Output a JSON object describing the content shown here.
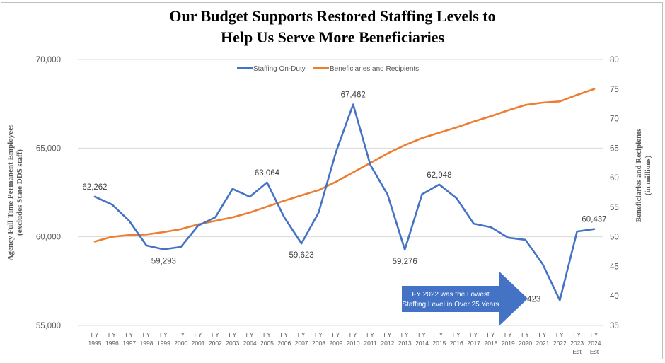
{
  "chart_data": {
    "type": "line",
    "title_line1": "Our Budget Supports Restored Staffing Levels to",
    "title_line2": "Help Us Serve More Beneficiaries",
    "categories": [
      {
        "line1": "FY",
        "line2": "1995",
        "line3": ""
      },
      {
        "line1": "FY",
        "line2": "1996",
        "line3": ""
      },
      {
        "line1": "FY",
        "line2": "1997",
        "line3": ""
      },
      {
        "line1": "FY",
        "line2": "1998",
        "line3": ""
      },
      {
        "line1": "FY",
        "line2": "1999",
        "line3": ""
      },
      {
        "line1": "FY",
        "line2": "2000",
        "line3": ""
      },
      {
        "line1": "FY",
        "line2": "2001",
        "line3": ""
      },
      {
        "line1": "FY",
        "line2": "2002",
        "line3": ""
      },
      {
        "line1": "FY",
        "line2": "2003",
        "line3": ""
      },
      {
        "line1": "FY",
        "line2": "2004",
        "line3": ""
      },
      {
        "line1": "FY",
        "line2": "2005",
        "line3": ""
      },
      {
        "line1": "FY",
        "line2": "2006",
        "line3": ""
      },
      {
        "line1": "FY",
        "line2": "2007",
        "line3": ""
      },
      {
        "line1": "FY",
        "line2": "2008",
        "line3": ""
      },
      {
        "line1": "FY",
        "line2": "2009",
        "line3": ""
      },
      {
        "line1": "FY",
        "line2": "2010",
        "line3": ""
      },
      {
        "line1": "FY",
        "line2": "2011",
        "line3": ""
      },
      {
        "line1": "FY",
        "line2": "2012",
        "line3": ""
      },
      {
        "line1": "FY",
        "line2": "2013",
        "line3": ""
      },
      {
        "line1": "FY",
        "line2": "2014",
        "line3": ""
      },
      {
        "line1": "FY",
        "line2": "2015",
        "line3": ""
      },
      {
        "line1": "FY",
        "line2": "2016",
        "line3": ""
      },
      {
        "line1": "FY",
        "line2": "2017",
        "line3": ""
      },
      {
        "line1": "FY",
        "line2": "2018",
        "line3": ""
      },
      {
        "line1": "FY",
        "line2": "2019",
        "line3": ""
      },
      {
        "line1": "FY",
        "line2": "2020",
        "line3": ""
      },
      {
        "line1": "FY",
        "line2": "2021",
        "line3": ""
      },
      {
        "line1": "FY",
        "line2": "2022",
        "line3": ""
      },
      {
        "line1": "FY",
        "line2": "2023",
        "line3": "Est"
      },
      {
        "line1": "FY",
        "line2": "2024",
        "line3": "Est"
      }
    ],
    "series": [
      {
        "name": "Staffing On-Duty",
        "axis": "left",
        "color": "#4472c4",
        "values": [
          62262,
          61820,
          60900,
          59510,
          59293,
          59430,
          60630,
          61100,
          62700,
          62260,
          63064,
          61100,
          59623,
          61380,
          64770,
          67462,
          64050,
          62380,
          59276,
          62400,
          62948,
          62180,
          60740,
          60540,
          59950,
          59830,
          58470,
          56423,
          60300,
          60437
        ],
        "data_labels": [
          {
            "index": 0,
            "text": "62,262",
            "position": "above"
          },
          {
            "index": 4,
            "text": "59,293",
            "position": "below"
          },
          {
            "index": 10,
            "text": "63,064",
            "position": "above"
          },
          {
            "index": 12,
            "text": "59,623",
            "position": "below"
          },
          {
            "index": 15,
            "text": "67,462",
            "position": "above"
          },
          {
            "index": 18,
            "text": "59,276",
            "position": "below"
          },
          {
            "index": 20,
            "text": "62,948",
            "position": "above"
          },
          {
            "index": 27,
            "text": "56,423",
            "position": "left"
          },
          {
            "index": 29,
            "text": "60,437",
            "position": "above"
          }
        ]
      },
      {
        "name": "Beneficiaries and Recipients",
        "axis": "right",
        "color": "#ed7d31",
        "values": [
          49.2,
          50.0,
          50.3,
          50.4,
          50.8,
          51.3,
          52.1,
          52.7,
          53.3,
          54.1,
          55.1,
          56.1,
          57.0,
          57.9,
          59.3,
          60.9,
          62.5,
          64.1,
          65.5,
          66.7,
          67.6,
          68.5,
          69.5,
          70.4,
          71.4,
          72.3,
          72.7,
          72.9,
          74.0,
          75.0
        ]
      }
    ],
    "left_axis": {
      "label_line1": "Agency Full-Time Permanent Employees",
      "label_line2": "(excludes State DDS staff)",
      "ylim": [
        55000,
        70000
      ],
      "ticks": [
        {
          "value": 55000,
          "text": "55,000"
        },
        {
          "value": 60000,
          "text": "60,000"
        },
        {
          "value": 65000,
          "text": "65,000"
        },
        {
          "value": 70000,
          "text": "70,000"
        }
      ]
    },
    "right_axis": {
      "label_line1": "Beneficiaries and Recipients",
      "label_line2": "(in millions)",
      "ylim": [
        35,
        80
      ],
      "ticks": [
        {
          "value": 35,
          "text": "35"
        },
        {
          "value": 40,
          "text": "40"
        },
        {
          "value": 45,
          "text": "45"
        },
        {
          "value": 50,
          "text": "50"
        },
        {
          "value": 55,
          "text": "55"
        },
        {
          "value": 60,
          "text": "60"
        },
        {
          "value": 65,
          "text": "65"
        },
        {
          "value": 70,
          "text": "70"
        },
        {
          "value": 75,
          "text": "75"
        },
        {
          "value": 80,
          "text": "80"
        }
      ]
    },
    "grid": "horizontal, left-axis major ticks",
    "legend": {
      "placement": "top-center",
      "items": [
        "Staffing On-Duty",
        "Beneficiaries and Recipients"
      ]
    },
    "annotation": {
      "type": "arrow-callout",
      "line1": "FY 2022 was the Lowest",
      "line2": "Staffing Level in Over 25 Years",
      "points_to_index": 27,
      "color": "#4472c4"
    }
  }
}
